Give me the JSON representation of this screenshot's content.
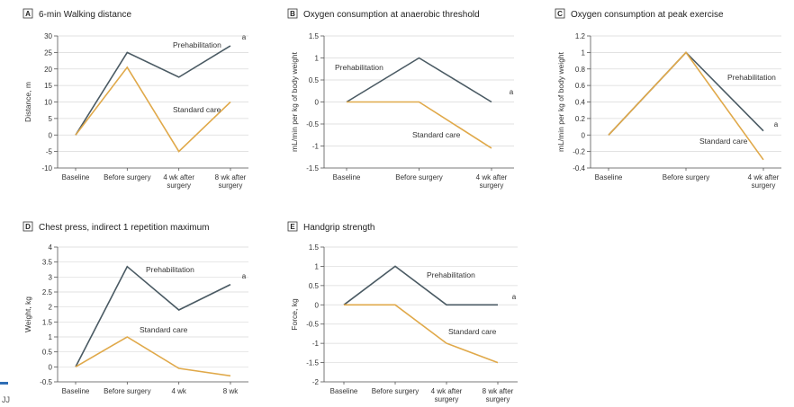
{
  "colors": {
    "prehab": "#4a5a63",
    "standard": "#e0a94a",
    "grid": "#d9d9d9"
  },
  "footer": {
    "mark": "JJ"
  },
  "chart_data": [
    {
      "id": "A",
      "type": "line",
      "title": "6-min Walking distance",
      "xlabel": "",
      "ylabel": "Distance, m",
      "ylim": [
        -10,
        30
      ],
      "yticks": [
        -10,
        -5,
        0,
        5,
        10,
        15,
        20,
        25,
        30
      ],
      "categories": [
        [
          "Baseline"
        ],
        [
          "Before surgery"
        ],
        [
          "4 wk after",
          "surgery"
        ],
        [
          "8 wk after",
          "surgery"
        ]
      ],
      "grid": true,
      "series": [
        {
          "name": "Prehabilitation",
          "values": [
            0,
            25,
            17.5,
            27
          ],
          "annotation": "a"
        },
        {
          "name": "Standard care",
          "values": [
            0,
            20.5,
            -5,
            10
          ]
        }
      ]
    },
    {
      "id": "B",
      "type": "line",
      "title": "Oxygen consumption at anaerobic threshold",
      "xlabel": "",
      "ylabel": "mL/min per kg of body weight",
      "ylim": [
        -1.5,
        1.5
      ],
      "yticks": [
        -1.5,
        -1.0,
        -0.5,
        0,
        0.5,
        1.0,
        1.5
      ],
      "categories": [
        [
          "Baseline"
        ],
        [
          "Before surgery"
        ],
        [
          "4 wk after",
          "surgery"
        ]
      ],
      "grid": true,
      "series": [
        {
          "name": "Prehabilitation",
          "values": [
            0,
            1.0,
            0
          ],
          "annotation": "a"
        },
        {
          "name": "Standard care",
          "values": [
            0,
            0,
            -1.05
          ]
        }
      ]
    },
    {
      "id": "C",
      "type": "line",
      "title": "Oxygen consumption at peak exercise",
      "xlabel": "",
      "ylabel": "mL/min per kg of body weight",
      "ylim": [
        -0.4,
        1.2
      ],
      "yticks": [
        -0.4,
        -0.2,
        0,
        0.2,
        0.4,
        0.6,
        0.8,
        1.0,
        1.2
      ],
      "categories": [
        [
          "Baseline"
        ],
        [
          "Before surgery"
        ],
        [
          "4 wk after",
          "surgery"
        ]
      ],
      "grid": true,
      "series": [
        {
          "name": "Prehabilitation",
          "values": [
            0,
            1.0,
            0.05
          ],
          "annotation": "a"
        },
        {
          "name": "Standard care",
          "values": [
            0,
            1.0,
            -0.3
          ]
        }
      ]
    },
    {
      "id": "D",
      "type": "line",
      "title": "Chest press, indirect 1 repetition maximum",
      "xlabel": "",
      "ylabel": "Weight, kg",
      "ylim": [
        -0.5,
        4.0
      ],
      "yticks": [
        -0.5,
        0,
        0.5,
        1.0,
        1.5,
        2.0,
        2.5,
        3.0,
        3.5,
        4.0
      ],
      "categories": [
        [
          "Baseline"
        ],
        [
          "Before surgery"
        ],
        [
          "4 wk"
        ],
        [
          "8 wk"
        ]
      ],
      "grid": true,
      "series": [
        {
          "name": "Prehabilitation",
          "values": [
            0,
            3.35,
            1.9,
            2.75
          ],
          "annotation": "a"
        },
        {
          "name": "Standard care",
          "values": [
            0,
            1.0,
            -0.05,
            -0.3
          ]
        }
      ]
    },
    {
      "id": "E",
      "type": "line",
      "title": "Handgrip strength",
      "xlabel": "",
      "ylabel": "Force, kg",
      "ylim": [
        -2.0,
        1.5
      ],
      "yticks": [
        -2.0,
        -1.5,
        -1.0,
        -0.5,
        0,
        0.5,
        1.0,
        1.5
      ],
      "categories": [
        [
          "Baseline"
        ],
        [
          "Before surgery"
        ],
        [
          "4 wk after",
          "surgery"
        ],
        [
          "8 wk after",
          "surgery"
        ]
      ],
      "grid": true,
      "series": [
        {
          "name": "Prehabilitation",
          "values": [
            0,
            1.0,
            0,
            0
          ],
          "annotation": "a"
        },
        {
          "name": "Standard care",
          "values": [
            0,
            0,
            -1.0,
            -1.5
          ]
        }
      ]
    }
  ]
}
